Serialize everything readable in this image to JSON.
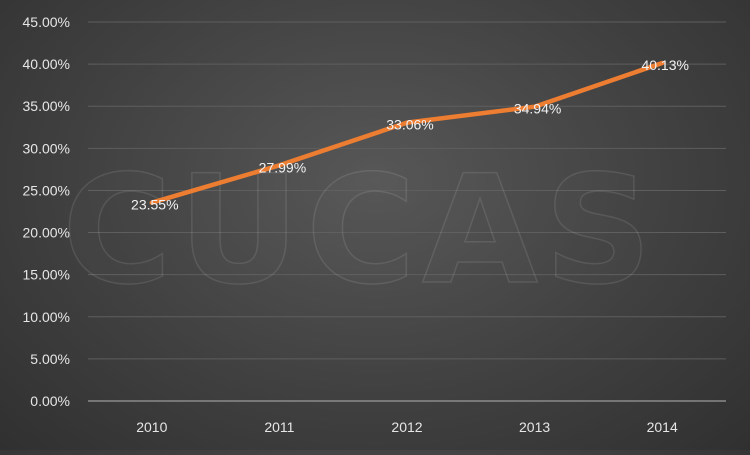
{
  "watermark": "CUCAS",
  "colors": {
    "line": "#ED7D31",
    "grid": "#5e5e5e",
    "axis": "#9a9a9a",
    "text": "#e6e6e6"
  },
  "chart_data": {
    "type": "line",
    "categories": [
      "2010",
      "2011",
      "2012",
      "2013",
      "2014"
    ],
    "series": [
      {
        "values": [
          23.55,
          27.99,
          33.06,
          34.94,
          40.13
        ],
        "labels": [
          "23.55%",
          "27.99%",
          "33.06%",
          "34.94%",
          "40.13%"
        ]
      }
    ],
    "ylim": [
      0,
      45
    ],
    "yticks": [
      "0.00%",
      "5.00%",
      "10.00%",
      "15.00%",
      "20.00%",
      "25.00%",
      "30.00%",
      "35.00%",
      "40.00%",
      "45.00%"
    ],
    "grid": true,
    "legend": "none"
  }
}
